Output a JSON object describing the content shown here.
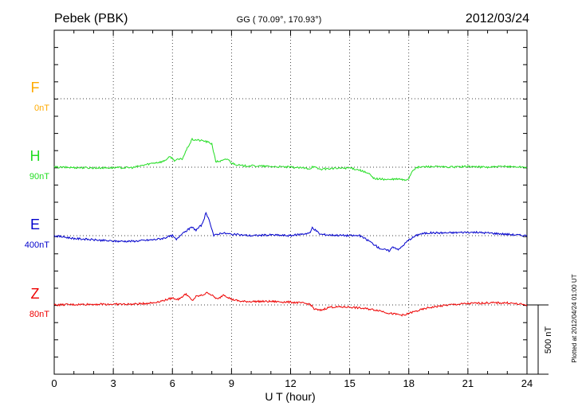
{
  "header": {
    "station": "Pebek (PBK)",
    "coords": "GG ( 70.09°, 170.93°)",
    "date": "2012/03/24"
  },
  "footer": {
    "plotted": "Plotted at 2012/04/24 01:00 UT"
  },
  "chart_data": {
    "type": "line",
    "xlabel": "U T (hour)",
    "xlim": [
      0,
      24
    ],
    "xticks": [
      "0",
      "3",
      "6",
      "9",
      "12",
      "15",
      "18",
      "21",
      "24"
    ],
    "grid": true,
    "scale_bar": {
      "label": "500 nT",
      "value_nT": 500
    },
    "series": [
      {
        "name": "F",
        "offset_label": "0nT",
        "color": "#ffaa00",
        "x": [],
        "y": []
      },
      {
        "name": "H",
        "offset_label": "90nT",
        "color": "#22dd22",
        "x": [
          0,
          2,
          4,
          5,
          5.5,
          5.9,
          6.1,
          6.5,
          6.8,
          7.0,
          7.3,
          7.6,
          8.0,
          8.2,
          8.5,
          8.8,
          9.0,
          9.5,
          10,
          11,
          12,
          12.5,
          13,
          13.1,
          13.5,
          14,
          15,
          15.5,
          16,
          16.2,
          16.5,
          17,
          17.5,
          17.8,
          18.0,
          18.2,
          18.5,
          19,
          20,
          21,
          22,
          23,
          24
        ],
        "y": [
          0,
          -5,
          -3,
          30,
          40,
          75,
          50,
          60,
          150,
          200,
          195,
          190,
          170,
          40,
          45,
          60,
          30,
          10,
          10,
          5,
          0,
          -5,
          -10,
          5,
          -15,
          -10,
          -5,
          -20,
          -50,
          -80,
          -85,
          -90,
          -85,
          -95,
          -80,
          -20,
          0,
          5,
          0,
          5,
          0,
          5,
          0
        ]
      },
      {
        "name": "E",
        "offset_label": "400nT",
        "color": "#0000cc",
        "x": [
          0,
          1,
          2,
          3,
          4,
          5,
          5.5,
          6,
          6.2,
          6.5,
          7.0,
          7.2,
          7.5,
          7.7,
          7.9,
          8.1,
          8.5,
          9,
          10,
          11,
          12,
          12.5,
          13,
          13.1,
          13.5,
          14,
          15,
          15.5,
          16,
          16.5,
          17,
          17.2,
          17.5,
          18,
          18.5,
          19,
          20,
          21,
          22,
          23,
          24
        ],
        "y": [
          0,
          -20,
          -30,
          -40,
          -40,
          -30,
          -20,
          0,
          -30,
          20,
          60,
          40,
          80,
          160,
          100,
          0,
          20,
          10,
          0,
          5,
          0,
          10,
          20,
          60,
          10,
          5,
          0,
          0,
          -40,
          -90,
          -110,
          -80,
          -100,
          -30,
          10,
          20,
          20,
          25,
          20,
          10,
          0
        ]
      },
      {
        "name": "Z",
        "offset_label": "80nT",
        "color": "#ee0000",
        "x": [
          0,
          2,
          4,
          5,
          5.5,
          6,
          6.3,
          6.7,
          7.0,
          7.2,
          7.5,
          7.8,
          8.0,
          8.3,
          8.6,
          9,
          9.5,
          10,
          11,
          12,
          12.5,
          13,
          13.2,
          13.5,
          14,
          15,
          16,
          16.5,
          17,
          17.5,
          17.8,
          18,
          18.5,
          19,
          20,
          21,
          22,
          23,
          24
        ],
        "y": [
          0,
          5,
          5,
          15,
          30,
          50,
          40,
          80,
          30,
          60,
          70,
          90,
          70,
          40,
          75,
          40,
          25,
          25,
          25,
          20,
          15,
          5,
          -30,
          -40,
          -15,
          -15,
          -30,
          -40,
          -60,
          -70,
          -75,
          -60,
          -40,
          -20,
          0,
          10,
          15,
          15,
          0
        ]
      }
    ]
  }
}
